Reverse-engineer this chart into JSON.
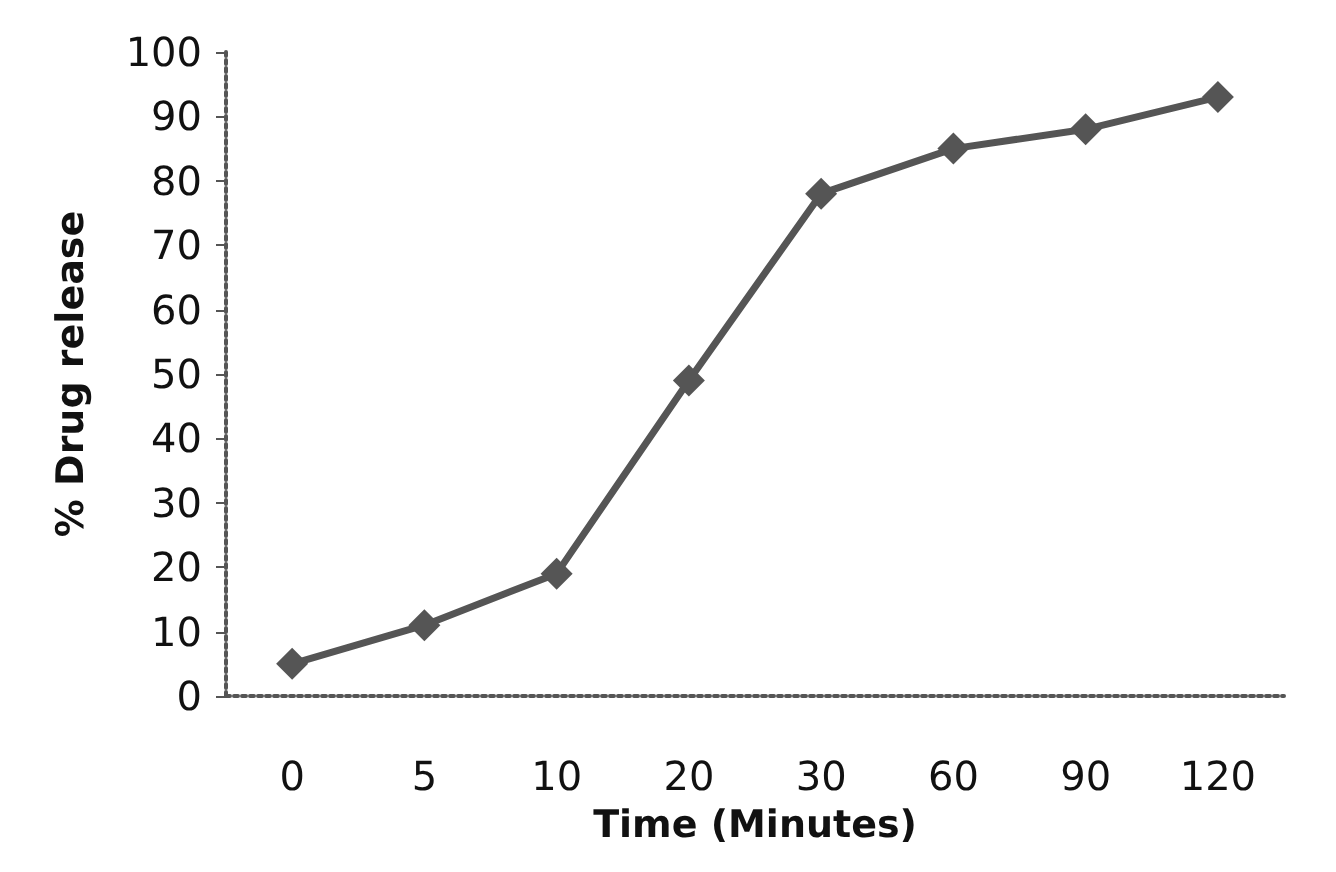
{
  "chart_data": {
    "type": "line",
    "xlabel": "Time (Minutes)",
    "ylabel": "% Drug release",
    "categories": [
      "0",
      "5",
      "10",
      "20",
      "30",
      "60",
      "90",
      "120"
    ],
    "series": [
      {
        "color": "#555555",
        "values": [
          5,
          11,
          19,
          49,
          78,
          85,
          88,
          93
        ]
      }
    ],
    "ylim": [
      0,
      100
    ],
    "yticks": [
      0,
      10,
      20,
      30,
      40,
      50,
      60,
      70,
      80,
      90,
      100
    ],
    "grid": false,
    "marker": "diamond",
    "line_style": "solid"
  }
}
